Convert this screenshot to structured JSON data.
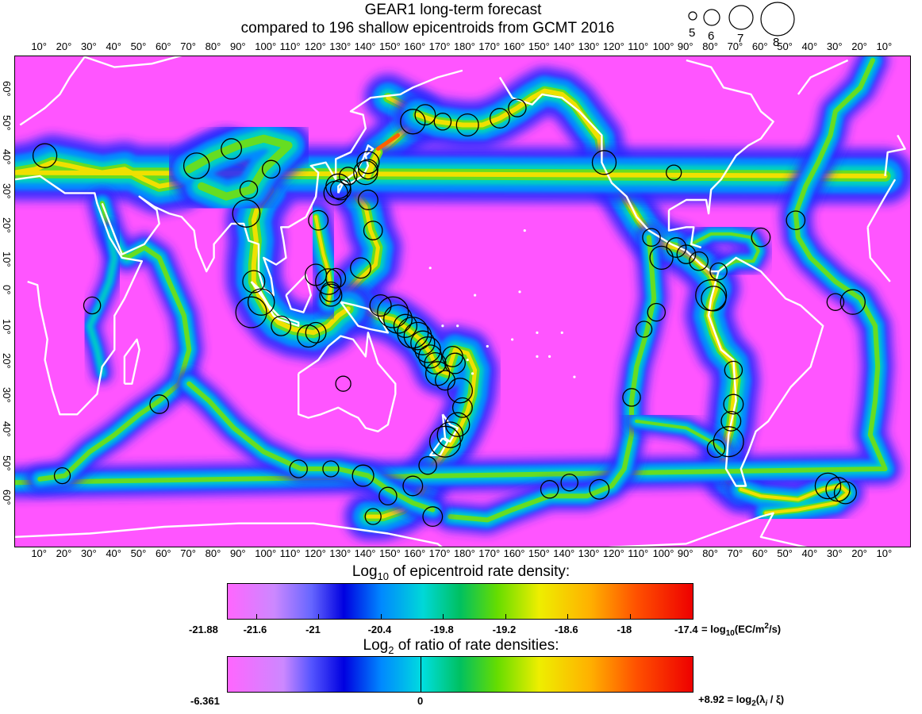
{
  "title_line1": "GEAR1 long-term forecast",
  "title_line2": "compared to 196 shallow epicentroids from GCMT 2016",
  "magnitude_legend": [
    "5",
    "6",
    "7",
    "8"
  ],
  "top_longitude_ticks": [
    "10°",
    "20°",
    "30°",
    "40°",
    "50°",
    "60°",
    "70°",
    "80°",
    "90°",
    "100°",
    "110°",
    "120°",
    "130°",
    "140°",
    "150°",
    "160°",
    "170°",
    "180°",
    "170°",
    "160°",
    "150°",
    "140°",
    "130°",
    "120°",
    "110°",
    "100°",
    "90°",
    "80°",
    "70°",
    "60°",
    "50°",
    "40°",
    "30°",
    "20°",
    "10°"
  ],
  "bottom_longitude_ticks": [
    "10°",
    "20°",
    "30°",
    "40°",
    "50°",
    "60°",
    "70°",
    "80°",
    "90°",
    "100°",
    "110°",
    "120°",
    "130°",
    "140°",
    "150°",
    "160°",
    "170°",
    "180°",
    "170°",
    "160°",
    "150°",
    "140°",
    "130°",
    "120°",
    "110°",
    "100°",
    "90°",
    "80°",
    "70°",
    "60°",
    "50°",
    "40°",
    "30°",
    "20°",
    "10°"
  ],
  "latitude_ticks": [
    "60°",
    "50°",
    "40°",
    "30°",
    "20°",
    "10°",
    "0°",
    "10°",
    "20°",
    "30°",
    "40°",
    "50°",
    "60°"
  ],
  "colorbar1": {
    "title_prefix": "Log",
    "title_sub": "10",
    "title_suffix": " of epicentroid rate density:",
    "min_label": "-21.88",
    "ticks": [
      "-21.6",
      "-21",
      "-20.4",
      "-19.8",
      "-19.2",
      "-18.6",
      "-18"
    ],
    "max_label": "-17.4",
    "unit_prefix": "= log",
    "unit_sub": "10",
    "unit_mid": "(EC/m",
    "unit_sup": "2",
    "unit_suffix": "/s)"
  },
  "colorbar2": {
    "title_prefix": "Log",
    "title_sub": "2",
    "title_suffix": " of ratio of rate densities:",
    "min_label": "-6.361",
    "zero_label": "0",
    "max_prefix": "+8.92 = log",
    "max_sub": "2",
    "max_suffix_a": "(λ",
    "max_sub_i": "i",
    "max_suffix_b": " / ξ)"
  },
  "epicentroids": [
    {
      "lon": 12,
      "lat": 42,
      "mag": 7.0
    },
    {
      "lon": 73,
      "lat": 39,
      "mag": 7.2
    },
    {
      "lon": 87,
      "lat": 44,
      "mag": 6.6
    },
    {
      "lon": 94,
      "lat": 32,
      "mag": 6.3
    },
    {
      "lon": 93,
      "lat": 25,
      "mag": 7.4
    },
    {
      "lon": 103,
      "lat": 38,
      "mag": 6.3
    },
    {
      "lon": 96,
      "lat": 5,
      "mag": 6.8
    },
    {
      "lon": 95,
      "lat": -4,
      "mag": 7.8
    },
    {
      "lon": 99,
      "lat": -1,
      "mag": 7.3
    },
    {
      "lon": 107,
      "lat": -8,
      "mag": 6.5
    },
    {
      "lon": 118,
      "lat": -11,
      "mag": 6.8
    },
    {
      "lon": 121,
      "lat": -10,
      "mag": 6.6
    },
    {
      "lon": 122,
      "lat": 23,
      "mag": 6.5
    },
    {
      "lon": 121,
      "lat": 7,
      "mag": 6.7
    },
    {
      "lon": 126,
      "lat": 5,
      "mag": 7.2
    },
    {
      "lon": 127,
      "lat": 1,
      "mag": 6.8
    },
    {
      "lon": 127,
      "lat": 2,
      "mag": 6.5
    },
    {
      "lon": 129,
      "lat": 6,
      "mag": 6.5
    },
    {
      "lon": 129,
      "lat": 31,
      "mag": 7.0
    },
    {
      "lon": 130,
      "lat": 33,
      "mag": 7.1
    },
    {
      "lon": 131,
      "lat": 32,
      "mag": 6.6
    },
    {
      "lon": 134,
      "lat": 36,
      "mag": 6.3
    },
    {
      "lon": 141,
      "lat": 37,
      "mag": 7.0
    },
    {
      "lon": 142,
      "lat": 38,
      "mag": 6.5
    },
    {
      "lon": 142,
      "lat": 40,
      "mag": 6.8
    },
    {
      "lon": 142,
      "lat": 29,
      "mag": 6.5
    },
    {
      "lon": 144,
      "lat": 20,
      "mag": 6.4
    },
    {
      "lon": 139,
      "lat": 9,
      "mag": 6.6
    },
    {
      "lon": 147,
      "lat": -2,
      "mag": 6.7
    },
    {
      "lon": 152,
      "lat": -4,
      "mag": 7.8
    },
    {
      "lon": 154,
      "lat": -6,
      "mag": 7.5
    },
    {
      "lon": 157,
      "lat": -8,
      "mag": 6.9
    },
    {
      "lon": 160,
      "lat": -10,
      "mag": 7.8
    },
    {
      "lon": 162,
      "lat": -11,
      "mag": 7.4
    },
    {
      "lon": 164,
      "lat": -13,
      "mag": 7.0
    },
    {
      "lon": 166,
      "lat": -15,
      "mag": 7.2
    },
    {
      "lon": 167,
      "lat": -17,
      "mag": 6.9
    },
    {
      "lon": 169,
      "lat": -19,
      "mag": 6.7
    },
    {
      "lon": 170,
      "lat": -22,
      "mag": 7.0
    },
    {
      "lon": 173,
      "lat": -24,
      "mag": 6.5
    },
    {
      "lon": 176,
      "lat": -17,
      "mag": 6.6
    },
    {
      "lon": 177,
      "lat": -19,
      "mag": 6.6
    },
    {
      "lon": 179,
      "lat": -27,
      "mag": 7.1
    },
    {
      "lon": 180,
      "lat": -32,
      "mag": 6.5
    },
    {
      "lon": 178,
      "lat": -37,
      "mag": 7.0
    },
    {
      "lon": 175,
      "lat": -40,
      "mag": 7.2
    },
    {
      "lon": 173,
      "lat": -42,
      "mag": 7.8
    },
    {
      "lon": 166,
      "lat": -49,
      "mag": 6.3
    },
    {
      "lon": 160,
      "lat": -55,
      "mag": 6.5
    },
    {
      "lon": 150,
      "lat": -58,
      "mag": 6.3
    },
    {
      "lon": 144,
      "lat": -64,
      "mag": 6.1
    },
    {
      "lon": 168,
      "lat": -64,
      "mag": 6.5
    },
    {
      "lon": 140,
      "lat": -52,
      "mag": 6.7
    },
    {
      "lon": 127,
      "lat": -50,
      "mag": 6.1
    },
    {
      "lon": 114,
      "lat": -50,
      "mag": 6.3
    },
    {
      "lon": 19,
      "lat": -52,
      "mag": 6.1
    },
    {
      "lon": 58,
      "lat": -31,
      "mag": 6.4
    },
    {
      "lon": 31,
      "lat": -2,
      "mag": 6.2
    },
    {
      "lon": 132,
      "lat": -25,
      "mag": 6.0
    },
    {
      "lon": 160,
      "lat": 52,
      "mag": 7.1
    },
    {
      "lon": 165,
      "lat": 54,
      "mag": 6.6
    },
    {
      "lon": 172,
      "lat": 52,
      "mag": 6.2
    },
    {
      "lon": -178,
      "lat": 51,
      "mag": 6.8
    },
    {
      "lon": -165,
      "lat": 53,
      "mag": 6.5
    },
    {
      "lon": -158,
      "lat": 56,
      "mag": 6.3
    },
    {
      "lon": -123,
      "lat": 40,
      "mag": 7.0
    },
    {
      "lon": -95,
      "lat": 37,
      "mag": 6.0
    },
    {
      "lon": -104,
      "lat": 18,
      "mag": 6.3
    },
    {
      "lon": -100,
      "lat": 12,
      "mag": 6.9
    },
    {
      "lon": -94,
      "lat": 15,
      "mag": 6.5
    },
    {
      "lon": -90,
      "lat": 13,
      "mag": 6.4
    },
    {
      "lon": -85,
      "lat": 11,
      "mag": 6.4
    },
    {
      "lon": -80,
      "lat": 1,
      "mag": 7.8
    },
    {
      "lon": -79,
      "lat": 0,
      "mag": 7.1
    },
    {
      "lon": -77,
      "lat": 8,
      "mag": 6.2
    },
    {
      "lon": -60,
      "lat": 18,
      "mag": 6.4
    },
    {
      "lon": -46,
      "lat": 23,
      "mag": 6.4
    },
    {
      "lon": -23,
      "lat": -1,
      "mag": 7.1
    },
    {
      "lon": -30,
      "lat": -1,
      "mag": 6.2
    },
    {
      "lon": -102,
      "lat": -4,
      "mag": 6.3
    },
    {
      "lon": -107,
      "lat": -9,
      "mag": 6.1
    },
    {
      "lon": -112,
      "lat": -29,
      "mag": 6.3
    },
    {
      "lon": -71,
      "lat": -21,
      "mag": 6.3
    },
    {
      "lon": -71,
      "lat": -31,
      "mag": 6.5
    },
    {
      "lon": -72,
      "lat": -36,
      "mag": 6.5
    },
    {
      "lon": -73,
      "lat": -42,
      "mag": 7.7
    },
    {
      "lon": -78,
      "lat": -44,
      "mag": 6.3
    },
    {
      "lon": -137,
      "lat": -54,
      "mag": 6.2
    },
    {
      "lon": -145,
      "lat": -56,
      "mag": 6.3
    },
    {
      "lon": -125,
      "lat": -56,
      "mag": 6.5
    },
    {
      "lon": -33,
      "lat": -55,
      "mag": 7.2
    },
    {
      "lon": -29,
      "lat": -56,
      "mag": 7.0
    },
    {
      "lon": -26,
      "lat": -57,
      "mag": 6.8
    }
  ]
}
